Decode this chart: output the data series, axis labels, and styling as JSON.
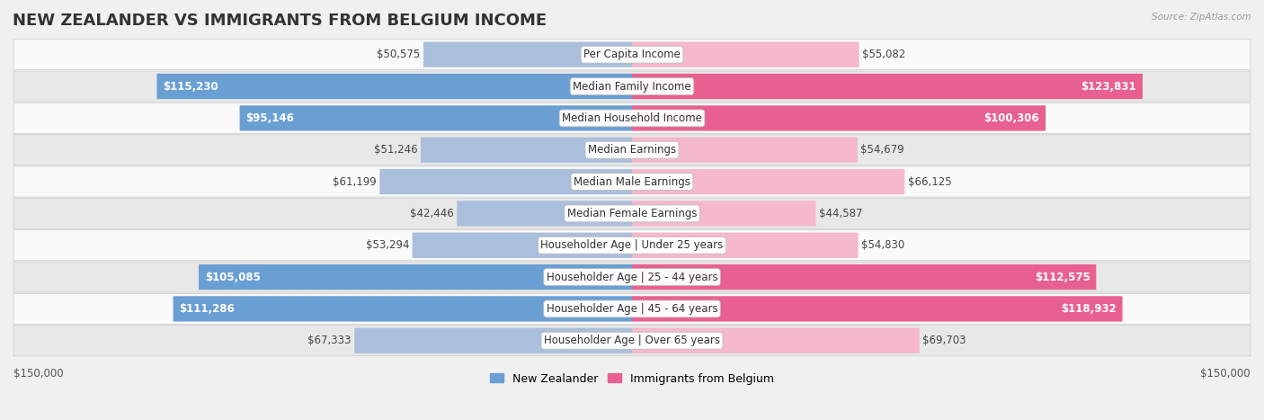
{
  "title": "NEW ZEALANDER VS IMMIGRANTS FROM BELGIUM INCOME",
  "source": "Source: ZipAtlas.com",
  "categories": [
    "Per Capita Income",
    "Median Family Income",
    "Median Household Income",
    "Median Earnings",
    "Median Male Earnings",
    "Median Female Earnings",
    "Householder Age | Under 25 years",
    "Householder Age | 25 - 44 years",
    "Householder Age | 45 - 64 years",
    "Householder Age | Over 65 years"
  ],
  "nz_values": [
    50575,
    115230,
    95146,
    51246,
    61199,
    42446,
    53294,
    105085,
    111286,
    67333
  ],
  "imm_values": [
    55082,
    123831,
    100306,
    54679,
    66125,
    44587,
    54830,
    112575,
    118932,
    69703
  ],
  "nz_labels": [
    "$50,575",
    "$115,230",
    "$95,146",
    "$51,246",
    "$61,199",
    "$42,446",
    "$53,294",
    "$105,085",
    "$111,286",
    "$67,333"
  ],
  "imm_labels": [
    "$55,082",
    "$123,831",
    "$100,306",
    "$54,679",
    "$66,125",
    "$44,587",
    "$54,830",
    "$112,575",
    "$118,932",
    "$69,703"
  ],
  "max_value": 150000,
  "nz_color_light": "#aabfdc",
  "nz_color_dark": "#6a9fd4",
  "imm_color_light": "#f5b8cc",
  "imm_color_dark": "#e86090",
  "nz_label_inside": [
    false,
    true,
    true,
    false,
    false,
    false,
    false,
    true,
    true,
    false
  ],
  "imm_label_inside": [
    false,
    true,
    true,
    false,
    false,
    false,
    false,
    true,
    true,
    false
  ],
  "background_color": "#f0f0f0",
  "row_bg_even": "#fafafa",
  "row_bg_odd": "#e8e8e8",
  "legend_nz_label": "New Zealander",
  "legend_imm_label": "Immigrants from Belgium",
  "xlabel_left": "$150,000",
  "xlabel_right": "$150,000",
  "title_fontsize": 13,
  "label_fontsize": 8.5,
  "category_fontsize": 8.5
}
